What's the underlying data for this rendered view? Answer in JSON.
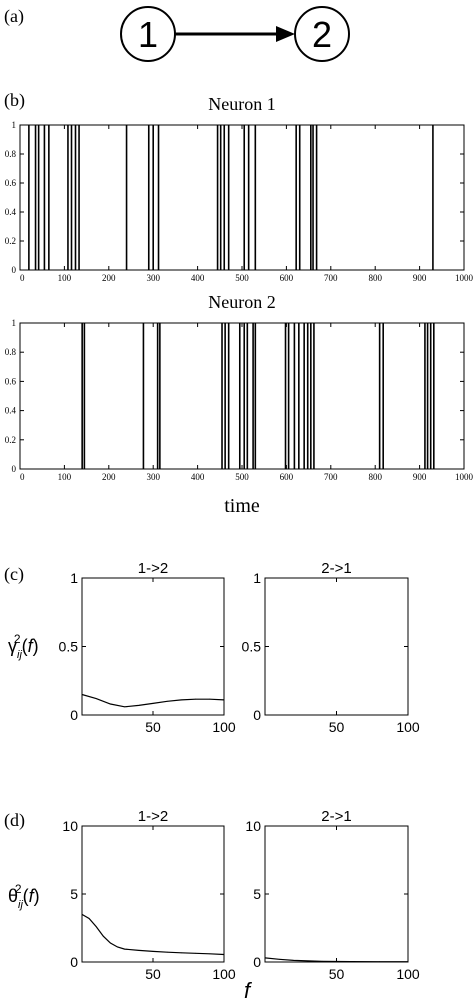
{
  "panel_labels": {
    "a": "(a)",
    "b": "(b)",
    "c": "(c)",
    "d": "(d)"
  },
  "diagram": {
    "node1": "1",
    "node2": "2"
  },
  "chart_data": [
    {
      "id": "neuron1",
      "type": "line",
      "title": "Neuron 1",
      "xlabel": "",
      "ylabel": "",
      "xlim": [
        0,
        1000
      ],
      "ylim": [
        0,
        1
      ],
      "xticks": [
        0,
        100,
        200,
        300,
        400,
        500,
        600,
        700,
        800,
        900,
        1000
      ],
      "yticks": [
        0,
        0.2,
        0.4,
        0.6,
        0.8,
        1
      ],
      "spike_times": [
        20,
        35,
        42,
        55,
        65,
        108,
        116,
        125,
        133,
        240,
        290,
        300,
        312,
        445,
        452,
        460,
        470,
        505,
        515,
        530,
        622,
        630,
        655,
        660,
        668,
        930
      ]
    },
    {
      "id": "neuron2",
      "type": "line",
      "title": "Neuron 2",
      "xlabel": "time",
      "ylabel": "",
      "xlim": [
        0,
        1000
      ],
      "ylim": [
        0,
        1
      ],
      "xticks": [
        0,
        100,
        200,
        300,
        400,
        500,
        600,
        700,
        800,
        900,
        1000
      ],
      "yticks": [
        0,
        0.2,
        0.4,
        0.6,
        0.8,
        1
      ],
      "spike_times": [
        140,
        145,
        278,
        310,
        315,
        455,
        462,
        470,
        495,
        505,
        512,
        525,
        530,
        598,
        605,
        618,
        628,
        640,
        648,
        655,
        662,
        810,
        818,
        912,
        918,
        925,
        932
      ]
    },
    {
      "id": "c-1to2",
      "type": "line",
      "title": "1->2",
      "ylabel": "γ_ij^2(f)",
      "xlim": [
        0,
        100
      ],
      "ylim": [
        0,
        1
      ],
      "xticks": [
        50,
        100
      ],
      "yticks": [
        0,
        0.5,
        1
      ],
      "x": [
        0,
        10,
        20,
        30,
        40,
        50,
        60,
        70,
        80,
        90,
        100
      ],
      "y": [
        0.15,
        0.12,
        0.08,
        0.06,
        0.07,
        0.085,
        0.1,
        0.11,
        0.115,
        0.115,
        0.11
      ]
    },
    {
      "id": "c-2to1",
      "type": "line",
      "title": "2->1",
      "xlim": [
        0,
        100
      ],
      "ylim": [
        0,
        1
      ],
      "xticks": [
        50,
        100
      ],
      "yticks": [
        0,
        0.5,
        1
      ],
      "x": [],
      "y": []
    },
    {
      "id": "d-1to2",
      "type": "line",
      "title": "1->2",
      "ylabel": "θ_ij^2(f)",
      "xlabel": "f",
      "xlim": [
        0,
        100
      ],
      "ylim": [
        0,
        10
      ],
      "xticks": [
        50,
        100
      ],
      "yticks": [
        0,
        5,
        10
      ],
      "x": [
        0,
        5,
        10,
        15,
        20,
        25,
        30,
        40,
        50,
        60,
        70,
        80,
        90,
        100
      ],
      "y": [
        3.5,
        3.2,
        2.6,
        1.9,
        1.4,
        1.1,
        0.95,
        0.85,
        0.78,
        0.72,
        0.68,
        0.64,
        0.6,
        0.55
      ]
    },
    {
      "id": "d-2to1",
      "type": "line",
      "title": "2->1",
      "xlim": [
        0,
        100
      ],
      "ylim": [
        0,
        10
      ],
      "xticks": [
        50,
        100
      ],
      "yticks": [
        0,
        5,
        10
      ],
      "x": [
        0,
        10,
        20,
        30,
        40,
        60,
        80,
        100
      ],
      "y": [
        0.3,
        0.2,
        0.12,
        0.08,
        0.05,
        0.03,
        0.02,
        0.02
      ]
    }
  ]
}
